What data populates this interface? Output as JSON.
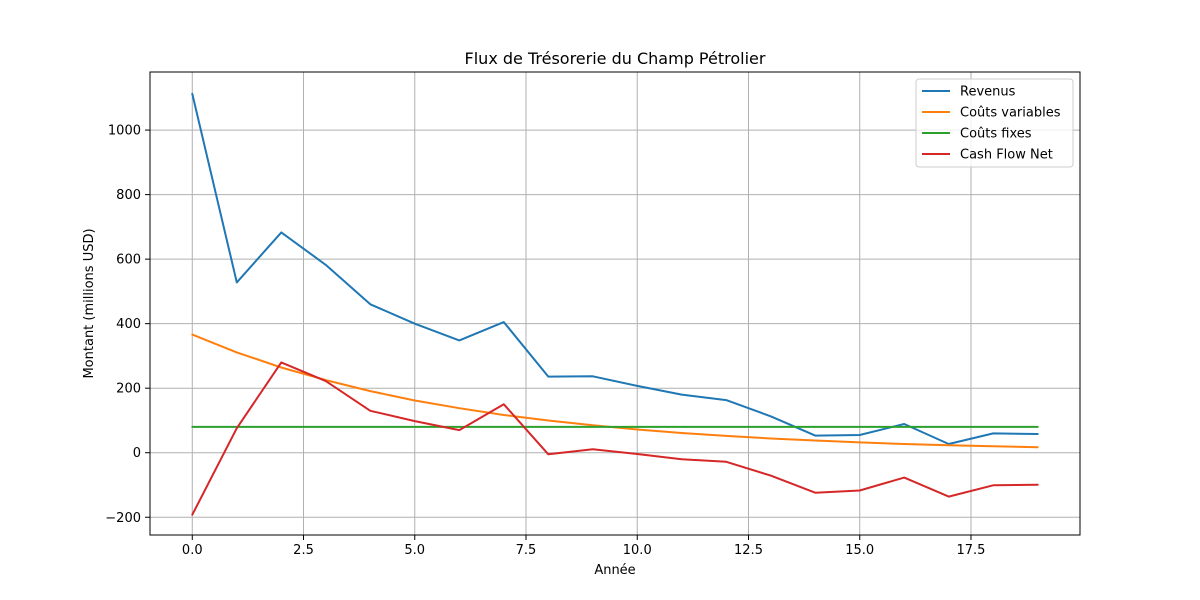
{
  "chart_data": {
    "type": "line",
    "title": "Flux de Trésorerie du Champ Pétrolier",
    "xlabel": "Année",
    "ylabel": "Montant (millions USD)",
    "x": [
      0,
      1,
      2,
      3,
      4,
      5,
      6,
      7,
      8,
      9,
      10,
      11,
      12,
      13,
      14,
      15,
      16,
      17,
      18,
      19
    ],
    "xlim": [
      -0.95,
      19.95
    ],
    "ylim": [
      -255,
      1180
    ],
    "x_ticks": [
      0,
      2.5,
      5,
      7.5,
      10,
      12.5,
      15,
      17.5
    ],
    "x_tick_labels": [
      "0.0",
      "2.5",
      "5.0",
      "7.5",
      "10.0",
      "12.5",
      "15.0",
      "17.5"
    ],
    "y_ticks": [
      -200,
      0,
      200,
      400,
      600,
      800,
      1000
    ],
    "y_tick_labels": [
      "−200",
      "0",
      "200",
      "400",
      "600",
      "800",
      "1000"
    ],
    "grid": true,
    "legend_position": "top-right",
    "series": [
      {
        "name": "Revenus",
        "color": "#1f77b4",
        "values": [
          1112,
          528,
          683,
          582,
          460,
          400,
          348,
          405,
          236,
          237,
          207,
          180,
          163,
          113,
          53,
          55,
          89,
          27,
          60,
          58
        ]
      },
      {
        "name": "Coûts variables",
        "color": "#ff7f0e",
        "values": [
          366,
          311,
          264,
          225,
          191,
          162,
          138,
          117,
          100,
          85,
          72,
          61,
          52,
          44,
          38,
          32,
          27,
          23,
          20,
          17
        ]
      },
      {
        "name": "Coûts fixes",
        "color": "#2ca02c",
        "values": [
          80,
          80,
          80,
          80,
          80,
          80,
          80,
          80,
          80,
          80,
          80,
          80,
          80,
          80,
          80,
          80,
          80,
          80,
          80,
          80
        ]
      },
      {
        "name": "Cash Flow Net",
        "color": "#d62728",
        "values": [
          -192,
          76,
          280,
          222,
          130,
          98,
          70,
          150,
          -5,
          11,
          -4,
          -20,
          -28,
          -71,
          -124,
          -117,
          -77,
          -136,
          -101,
          -99
        ]
      }
    ]
  }
}
